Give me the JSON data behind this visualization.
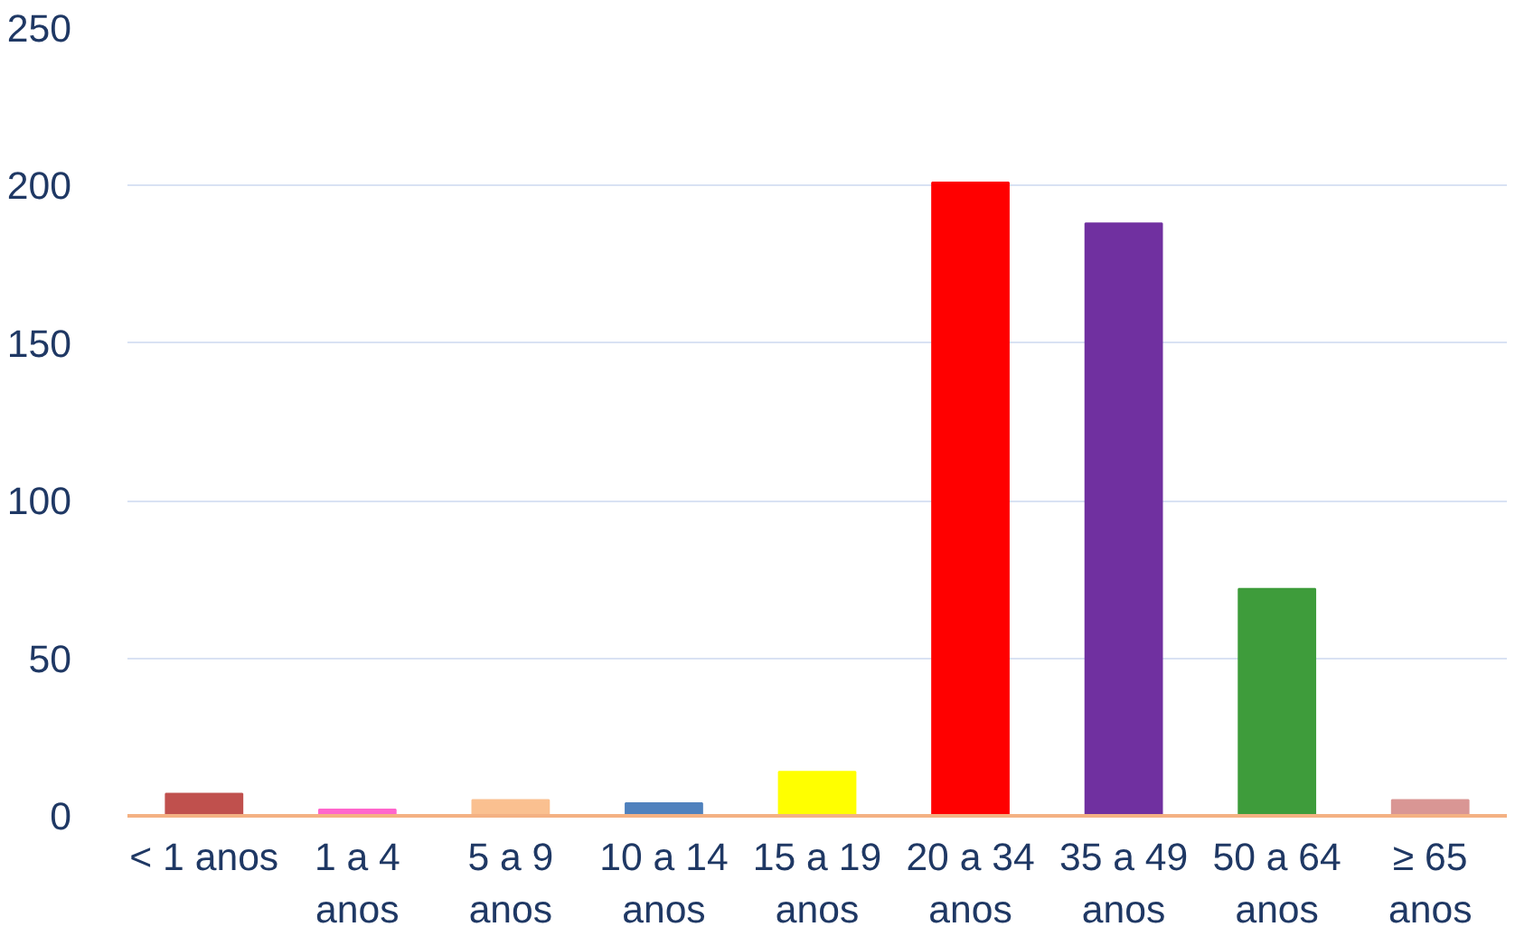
{
  "chart_data": {
    "type": "bar",
    "categories": [
      "< 1 anos",
      "1 a 4\nanos",
      "5 a 9\nanos",
      "10 a 14\nanos",
      "15 a 19\nanos",
      "20 a 34\nanos",
      "35 a 49\nanos",
      "50 a 64\nanos",
      "≥ 65\nanos"
    ],
    "values": [
      7,
      2,
      5,
      4,
      14,
      201,
      188,
      72,
      5
    ],
    "colors": [
      "#c0504d",
      "#ff66cc",
      "#fac090",
      "#4f81bd",
      "#ffff00",
      "#ff0000",
      "#7030a0",
      "#3e9c3b",
      "#d99694"
    ],
    "ylim": [
      0,
      250
    ],
    "yticks": [
      0,
      50,
      100,
      150,
      200,
      250
    ],
    "grid": "y"
  }
}
